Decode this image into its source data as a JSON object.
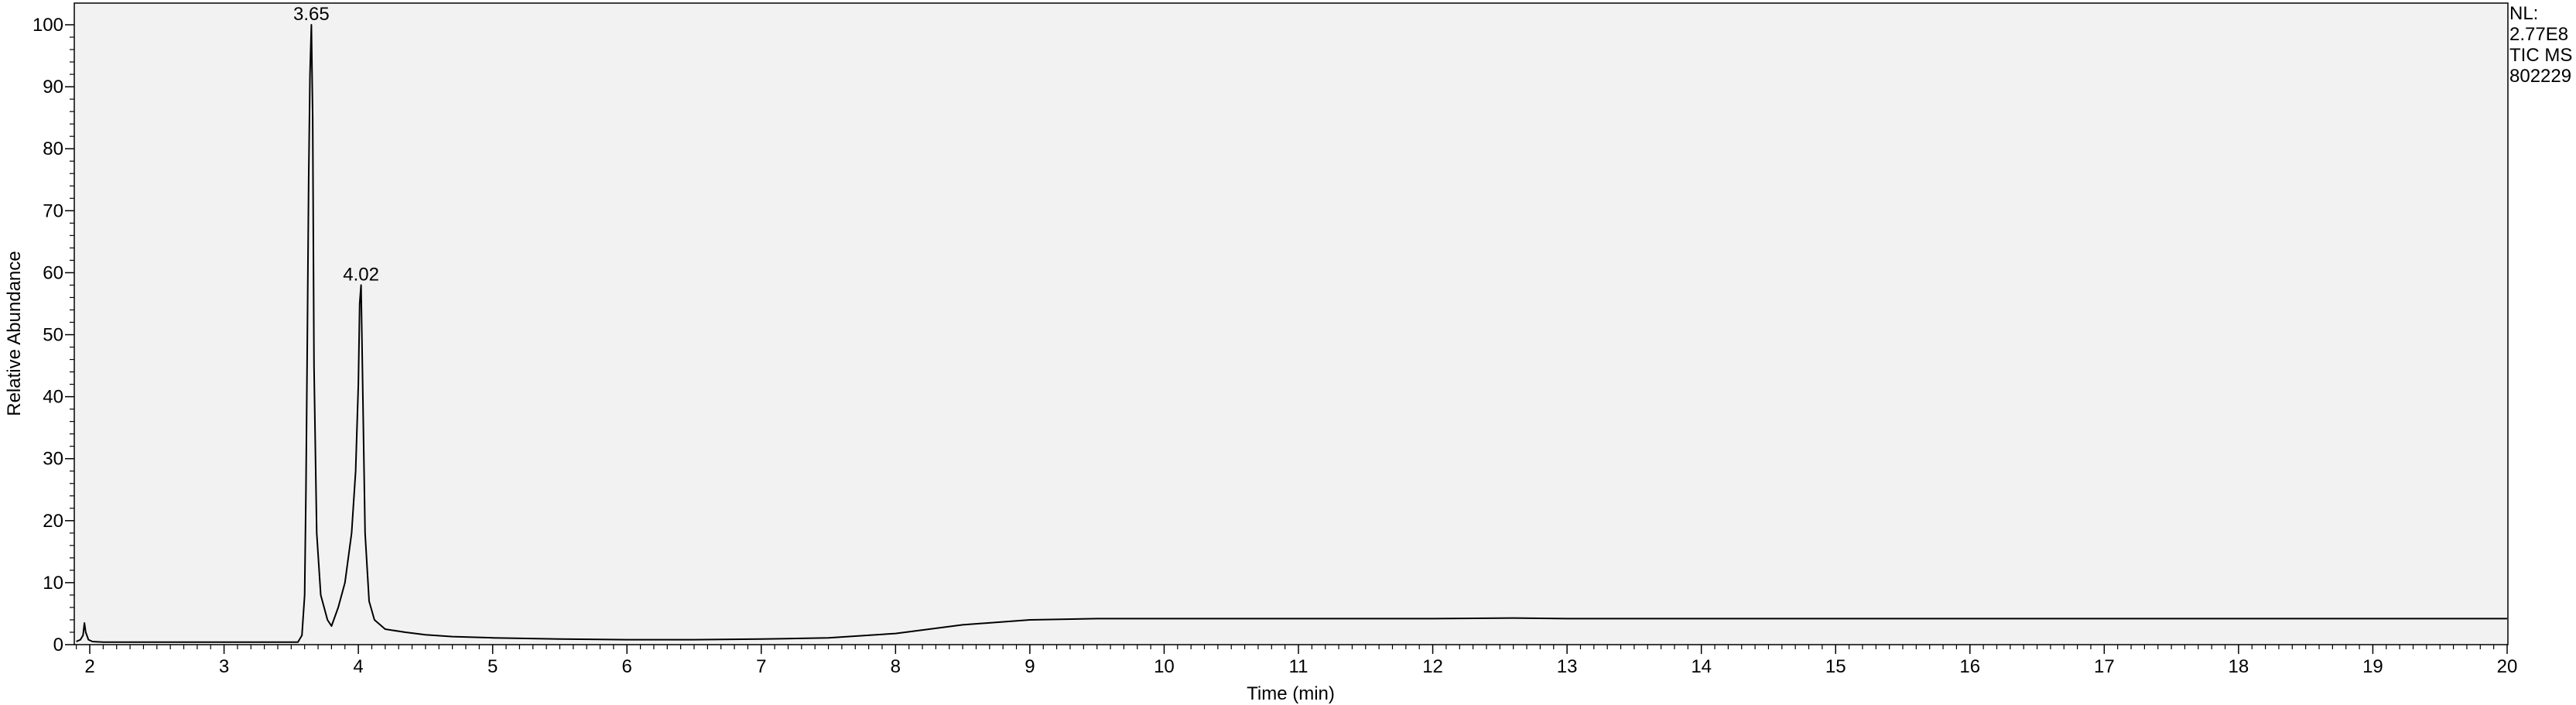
{
  "chart_data": {
    "type": "line",
    "title": "",
    "xlabel": "Time (min)",
    "ylabel": "Relative Abundance",
    "xlim": [
      1.9,
      20
    ],
    "ylim": [
      0,
      100
    ],
    "x_ticks": [
      2,
      3,
      4,
      5,
      6,
      7,
      8,
      9,
      10,
      11,
      12,
      13,
      14,
      15,
      16,
      17,
      18,
      19,
      20
    ],
    "y_ticks": [
      0,
      10,
      20,
      30,
      40,
      50,
      60,
      70,
      80,
      90,
      100
    ],
    "grid": false,
    "legend": "none",
    "line_color": "#000000",
    "plot_background": "#f2f2f2",
    "series": [
      {
        "x": [
          1.9,
          1.93,
          1.95,
          1.96,
          1.97,
          1.99,
          2.02,
          2.1,
          2.5,
          3.0,
          3.3,
          3.55,
          3.58,
          3.6,
          3.61,
          3.62,
          3.63,
          3.64,
          3.65,
          3.66,
          3.67,
          3.69,
          3.72,
          3.77,
          3.8,
          3.85,
          3.9,
          3.95,
          3.98,
          4.0,
          4.01,
          4.02,
          4.03,
          4.05,
          4.08,
          4.12,
          4.2,
          4.35,
          4.5,
          4.7,
          5.0,
          5.5,
          6.0,
          6.5,
          7.0,
          7.5,
          8.0,
          8.5,
          9.0,
          9.5,
          10.0,
          11.0,
          12.0,
          12.6,
          13.0,
          14.0,
          15.0,
          16.0,
          17.0,
          18.0,
          19.0,
          20.0
        ],
        "y": [
          0.5,
          0.8,
          1.5,
          3.5,
          2.0,
          0.8,
          0.5,
          0.4,
          0.4,
          0.4,
          0.4,
          0.4,
          1.5,
          8,
          25,
          50,
          75,
          92,
          100,
          85,
          45,
          18,
          8,
          4,
          3,
          6,
          10,
          18,
          28,
          42,
          55,
          58,
          45,
          18,
          7,
          4,
          2.5,
          2.0,
          1.6,
          1.3,
          1.1,
          0.9,
          0.8,
          0.8,
          0.9,
          1.1,
          1.8,
          3.2,
          4.0,
          4.2,
          4.2,
          4.2,
          4.2,
          4.3,
          4.2,
          4.2,
          4.2,
          4.2,
          4.2,
          4.2,
          4.2,
          4.2
        ]
      }
    ],
    "annotations": [
      {
        "x": 3.65,
        "y": 100,
        "text": "3.65"
      },
      {
        "x": 4.02,
        "y": 58,
        "text": "4.02"
      }
    ]
  },
  "nl_info": {
    "line1": "NL:",
    "line2": "2.77E8",
    "line3": "TIC  MS",
    "line4": "802229"
  }
}
